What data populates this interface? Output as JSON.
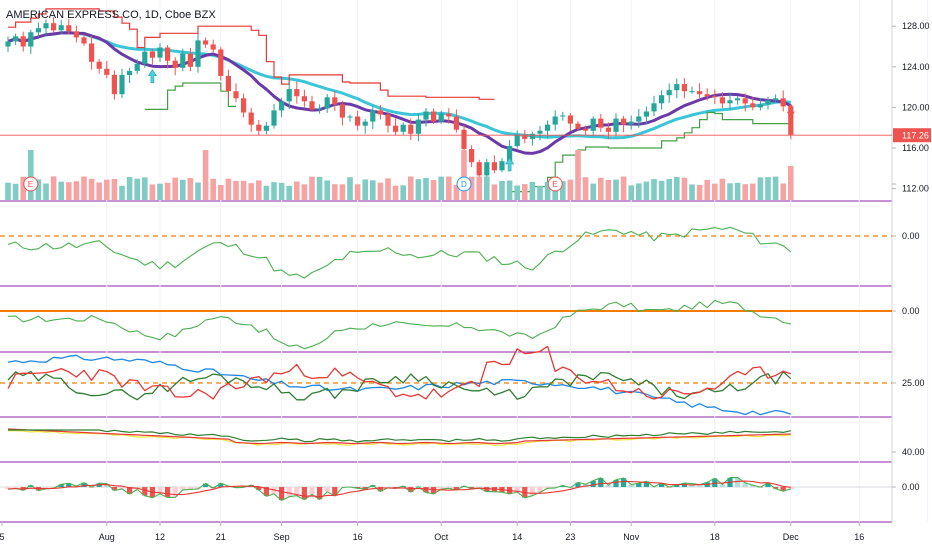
{
  "title": "AMERICAN EXPRESS CO, 1D, Cboe BZX",
  "colors": {
    "up": "#26a69a",
    "down": "#ef5350",
    "vol_up": "#80cbc4",
    "vol_down": "#f5a3a3",
    "ma_fast": "#6a3aa8",
    "ma_slow": "#3ac6d8",
    "stop": "#e53935",
    "stop_green": "#43a047",
    "pane_border": "#8e24aa",
    "dash": "#f57c00",
    "osc_green": "#4caf50",
    "price_tag": "#ef5350",
    "adx": "#e53935",
    "di_plus": "#2e7d32",
    "di_minus": "#1e88e5",
    "yellow": "#f0e442"
  },
  "chart_data": [
    {
      "type": "candlestick",
      "pane": "price",
      "title": "AMERICAN EXPRESS CO, 1D, Cboe BZX",
      "y_ticks": [
        112.0,
        116.0,
        120.0,
        124.0,
        128.0
      ],
      "ylim": [
        110.0,
        130.0
      ],
      "last_price_label": "117.26",
      "x_tick_labels": [
        "5",
        "Aug",
        "12",
        "21",
        "Sep",
        "16",
        "Oct",
        "14",
        "23",
        "Nov",
        "18",
        "Dec",
        "16"
      ],
      "event_markers": [
        "E",
        "D",
        "E"
      ],
      "close": [
        126.5,
        127.0,
        126.0,
        127.4,
        127.8,
        128.3,
        127.6,
        128.1,
        127.5,
        126.9,
        126.3,
        124.5,
        123.8,
        123.2,
        121.3,
        123.2,
        123.6,
        124.3,
        125.5,
        124.9,
        125.9,
        124.6,
        123.9,
        125.3,
        124.0,
        126.6,
        126.2,
        125.7,
        123.1,
        121.6,
        120.9,
        119.5,
        118.3,
        117.7,
        118.2,
        119.7,
        120.6,
        121.8,
        121.1,
        120.6,
        119.8,
        119.9,
        121.0,
        120.3,
        119.0,
        119.1,
        118.2,
        118.6,
        119.7,
        119.3,
        118.2,
        117.6,
        118.3,
        117.4,
        118.8,
        119.6,
        118.6,
        119.4,
        119.1,
        117.8,
        115.9,
        114.6,
        113.3,
        114.6,
        113.8,
        114.7,
        116.2,
        117.3,
        116.9,
        117.4,
        117.7,
        118.3,
        119.1,
        119.2,
        118.4,
        117.9,
        117.7,
        118.9,
        118.0,
        117.6,
        118.9,
        118.3,
        118.6,
        119.1,
        119.6,
        120.4,
        121.2,
        121.7,
        122.3,
        121.6,
        121.6,
        121.3,
        121.1,
        121.0,
        120.4,
        120.7,
        120.9,
        120.4,
        120.0,
        120.3,
        120.7,
        120.9,
        120.1,
        117.3
      ],
      "open": [
        126.0,
        126.5,
        127.0,
        126.0,
        127.4,
        127.8,
        128.3,
        127.6,
        128.1,
        127.5,
        126.9,
        126.3,
        124.5,
        123.8,
        123.2,
        121.3,
        123.2,
        123.6,
        124.3,
        125.5,
        124.9,
        125.9,
        124.6,
        123.9,
        125.3,
        124.0,
        126.6,
        126.2,
        125.7,
        123.1,
        121.6,
        120.9,
        119.5,
        118.3,
        117.7,
        118.2,
        119.7,
        120.6,
        121.8,
        121.1,
        120.6,
        119.8,
        119.9,
        121.0,
        120.3,
        119.0,
        119.1,
        118.2,
        118.6,
        119.7,
        119.3,
        118.2,
        117.6,
        118.3,
        117.4,
        118.8,
        119.6,
        118.6,
        119.4,
        119.1,
        117.8,
        115.9,
        114.6,
        113.3,
        114.6,
        113.8,
        114.7,
        116.2,
        117.3,
        116.9,
        117.4,
        117.7,
        118.3,
        119.1,
        119.2,
        118.4,
        117.9,
        117.7,
        118.9,
        118.0,
        117.6,
        118.9,
        118.3,
        118.6,
        119.1,
        119.6,
        120.4,
        121.2,
        121.7,
        122.3,
        121.6,
        121.6,
        121.3,
        121.1,
        121.0,
        120.4,
        120.7,
        120.9,
        120.4,
        120.0,
        120.3,
        120.7,
        120.9,
        120.1
      ]
    },
    {
      "type": "bar",
      "pane": "volume"
    },
    {
      "type": "line",
      "pane": "oscillator_1",
      "y_ticks": [
        0.0
      ]
    },
    {
      "type": "line",
      "pane": "oscillator_2",
      "y_ticks": [
        0.0
      ]
    },
    {
      "type": "line",
      "pane": "adx",
      "y_ticks": [
        25.0
      ]
    },
    {
      "type": "line",
      "pane": "indicator_4",
      "y_ticks": [
        40.0
      ]
    },
    {
      "type": "bar",
      "pane": "histogram",
      "y_ticks": [
        0.0
      ]
    }
  ]
}
